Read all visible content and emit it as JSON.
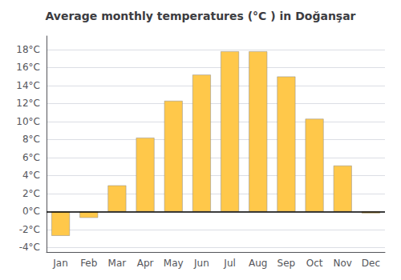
{
  "chart_data": {
    "type": "bar",
    "title": "Average monthly temperatures (°C ) in Doğanşar",
    "categories": [
      "Jan",
      "Feb",
      "Mar",
      "Apr",
      "May",
      "Jun",
      "Jul",
      "Aug",
      "Sep",
      "Oct",
      "Nov",
      "Dec"
    ],
    "values": [
      -2.7,
      -0.7,
      2.9,
      8.2,
      12.3,
      15.2,
      17.8,
      17.8,
      15.0,
      10.3,
      5.1,
      -0.2
    ],
    "color": "#FFC84A",
    "ylim": [
      -4.5,
      19.5
    ],
    "yticks": [
      {
        "value": -4,
        "label": "-4°C"
      },
      {
        "value": -2,
        "label": "-2°C"
      },
      {
        "value": 0,
        "label": "0°C"
      },
      {
        "value": 2,
        "label": "2°C"
      },
      {
        "value": 4,
        "label": "4°C"
      },
      {
        "value": 6,
        "label": "6°C"
      },
      {
        "value": 8,
        "label": "8°C"
      },
      {
        "value": 10,
        "label": "10°C"
      },
      {
        "value": 12,
        "label": "12°C"
      },
      {
        "value": 14,
        "label": "14°C"
      },
      {
        "value": 16,
        "label": "16°C"
      },
      {
        "value": 18,
        "label": "18°C"
      }
    ],
    "grid": true
  }
}
